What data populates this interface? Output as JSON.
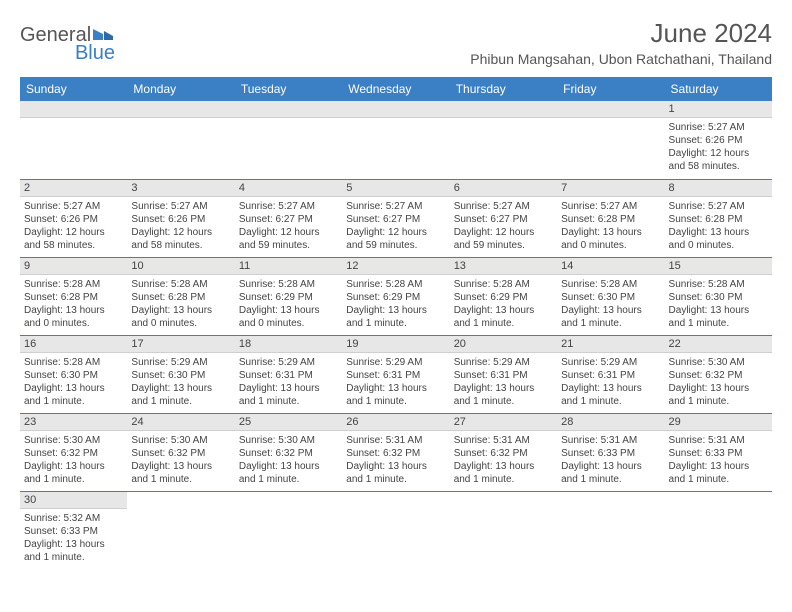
{
  "brand": {
    "part1": "General",
    "part2": "Blue"
  },
  "title": "June 2024",
  "location": "Phibun Mangsahan, Ubon Ratchathani, Thailand",
  "colors": {
    "header_bg": "#3b7fc4",
    "header_text": "#ffffff",
    "daynum_bg": "#e7e7e7",
    "text": "#444444",
    "rule": "#3b7fc4"
  },
  "day_headers": [
    "Sunday",
    "Monday",
    "Tuesday",
    "Wednesday",
    "Thursday",
    "Friday",
    "Saturday"
  ],
  "weeks": [
    [
      null,
      null,
      null,
      null,
      null,
      null,
      {
        "n": "1",
        "sunrise": "5:27 AM",
        "sunset": "6:26 PM",
        "daylight": "12 hours and 58 minutes."
      }
    ],
    [
      {
        "n": "2",
        "sunrise": "5:27 AM",
        "sunset": "6:26 PM",
        "daylight": "12 hours and 58 minutes."
      },
      {
        "n": "3",
        "sunrise": "5:27 AM",
        "sunset": "6:26 PM",
        "daylight": "12 hours and 58 minutes."
      },
      {
        "n": "4",
        "sunrise": "5:27 AM",
        "sunset": "6:27 PM",
        "daylight": "12 hours and 59 minutes."
      },
      {
        "n": "5",
        "sunrise": "5:27 AM",
        "sunset": "6:27 PM",
        "daylight": "12 hours and 59 minutes."
      },
      {
        "n": "6",
        "sunrise": "5:27 AM",
        "sunset": "6:27 PM",
        "daylight": "12 hours and 59 minutes."
      },
      {
        "n": "7",
        "sunrise": "5:27 AM",
        "sunset": "6:28 PM",
        "daylight": "13 hours and 0 minutes."
      },
      {
        "n": "8",
        "sunrise": "5:27 AM",
        "sunset": "6:28 PM",
        "daylight": "13 hours and 0 minutes."
      }
    ],
    [
      {
        "n": "9",
        "sunrise": "5:28 AM",
        "sunset": "6:28 PM",
        "daylight": "13 hours and 0 minutes."
      },
      {
        "n": "10",
        "sunrise": "5:28 AM",
        "sunset": "6:28 PM",
        "daylight": "13 hours and 0 minutes."
      },
      {
        "n": "11",
        "sunrise": "5:28 AM",
        "sunset": "6:29 PM",
        "daylight": "13 hours and 0 minutes."
      },
      {
        "n": "12",
        "sunrise": "5:28 AM",
        "sunset": "6:29 PM",
        "daylight": "13 hours and 1 minute."
      },
      {
        "n": "13",
        "sunrise": "5:28 AM",
        "sunset": "6:29 PM",
        "daylight": "13 hours and 1 minute."
      },
      {
        "n": "14",
        "sunrise": "5:28 AM",
        "sunset": "6:30 PM",
        "daylight": "13 hours and 1 minute."
      },
      {
        "n": "15",
        "sunrise": "5:28 AM",
        "sunset": "6:30 PM",
        "daylight": "13 hours and 1 minute."
      }
    ],
    [
      {
        "n": "16",
        "sunrise": "5:28 AM",
        "sunset": "6:30 PM",
        "daylight": "13 hours and 1 minute."
      },
      {
        "n": "17",
        "sunrise": "5:29 AM",
        "sunset": "6:30 PM",
        "daylight": "13 hours and 1 minute."
      },
      {
        "n": "18",
        "sunrise": "5:29 AM",
        "sunset": "6:31 PM",
        "daylight": "13 hours and 1 minute."
      },
      {
        "n": "19",
        "sunrise": "5:29 AM",
        "sunset": "6:31 PM",
        "daylight": "13 hours and 1 minute."
      },
      {
        "n": "20",
        "sunrise": "5:29 AM",
        "sunset": "6:31 PM",
        "daylight": "13 hours and 1 minute."
      },
      {
        "n": "21",
        "sunrise": "5:29 AM",
        "sunset": "6:31 PM",
        "daylight": "13 hours and 1 minute."
      },
      {
        "n": "22",
        "sunrise": "5:30 AM",
        "sunset": "6:32 PM",
        "daylight": "13 hours and 1 minute."
      }
    ],
    [
      {
        "n": "23",
        "sunrise": "5:30 AM",
        "sunset": "6:32 PM",
        "daylight": "13 hours and 1 minute."
      },
      {
        "n": "24",
        "sunrise": "5:30 AM",
        "sunset": "6:32 PM",
        "daylight": "13 hours and 1 minute."
      },
      {
        "n": "25",
        "sunrise": "5:30 AM",
        "sunset": "6:32 PM",
        "daylight": "13 hours and 1 minute."
      },
      {
        "n": "26",
        "sunrise": "5:31 AM",
        "sunset": "6:32 PM",
        "daylight": "13 hours and 1 minute."
      },
      {
        "n": "27",
        "sunrise": "5:31 AM",
        "sunset": "6:32 PM",
        "daylight": "13 hours and 1 minute."
      },
      {
        "n": "28",
        "sunrise": "5:31 AM",
        "sunset": "6:33 PM",
        "daylight": "13 hours and 1 minute."
      },
      {
        "n": "29",
        "sunrise": "5:31 AM",
        "sunset": "6:33 PM",
        "daylight": "13 hours and 1 minute."
      }
    ],
    [
      {
        "n": "30",
        "sunrise": "5:32 AM",
        "sunset": "6:33 PM",
        "daylight": "13 hours and 1 minute."
      },
      null,
      null,
      null,
      null,
      null,
      null
    ]
  ],
  "labels": {
    "sunrise": "Sunrise:",
    "sunset": "Sunset:",
    "daylight": "Daylight:"
  }
}
